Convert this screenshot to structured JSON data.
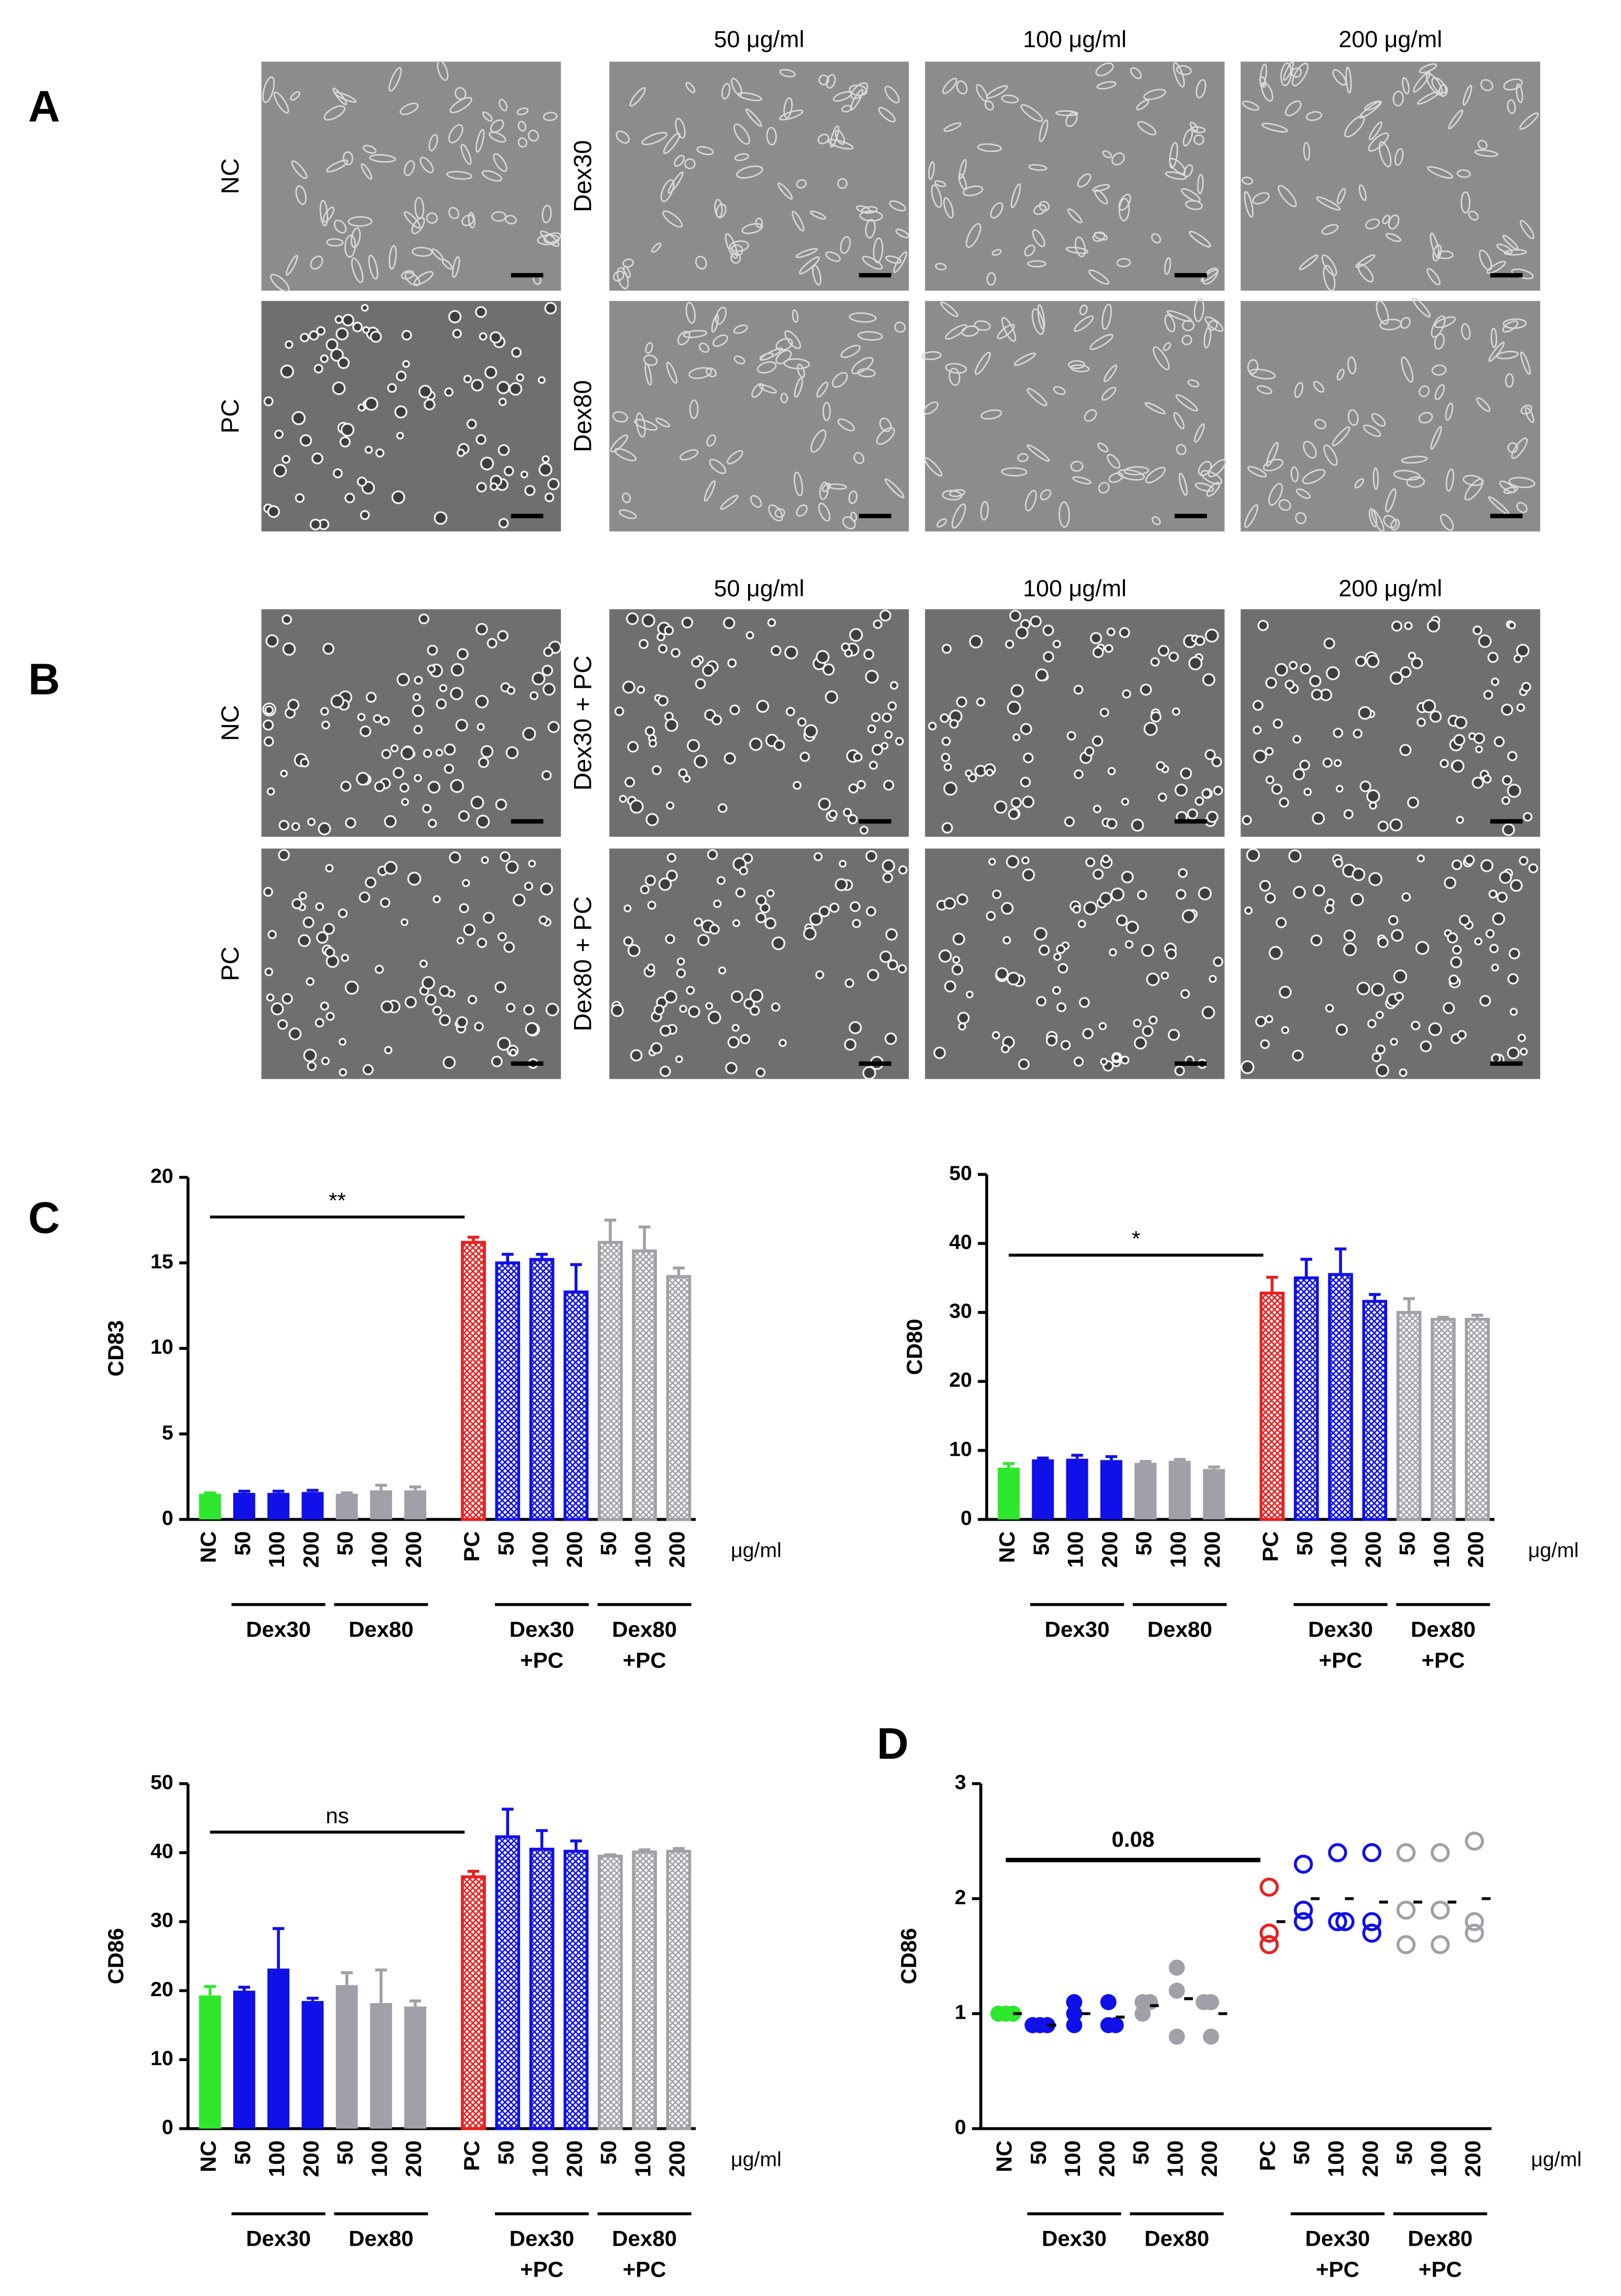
{
  "micrographs": [
    {
      "label": "A",
      "col_headers": [
        "50 μg/ml",
        "100 μg/ml",
        "200 μg/ml"
      ],
      "control_rows": [
        "NC",
        "PC"
      ],
      "treatment_rows": [
        "Dex30",
        "Dex80"
      ]
    },
    {
      "label": "B",
      "col_headers": [
        "50 μg/ml",
        "100 μg/ml",
        "200 μg/ml"
      ],
      "control_rows": [
        "NC",
        "PC"
      ],
      "treatment_rows": [
        "Dex30 + PC",
        "Dex80 + PC"
      ]
    }
  ],
  "chart_data": [
    {
      "type": "bar",
      "panel_label": "C",
      "y_label": "CD83",
      "unit_label": "μg/ml",
      "annotation": "**",
      "categories": [
        "NC",
        "50",
        "100",
        "200",
        "50",
        "100",
        "200",
        "PC",
        "50",
        "100",
        "200",
        "50",
        "100",
        "200"
      ],
      "groups": [
        [
          "Dex30"
        ],
        [
          "Dex80"
        ],
        [
          "Dex30",
          "+PC"
        ],
        [
          "Dex80",
          "+PC"
        ]
      ],
      "values": [
        1.5,
        1.55,
        1.55,
        1.6,
        1.5,
        1.7,
        1.7,
        16.2,
        15.0,
        15.2,
        13.3,
        16.2,
        15.7,
        14.2
      ],
      "errors": [
        0.05,
        0.1,
        0.1,
        0.1,
        0.05,
        0.3,
        0.2,
        0.3,
        0.5,
        0.3,
        1.6,
        1.3,
        1.4,
        0.5
      ],
      "colors": [
        "#2ee82e",
        "#1010e8",
        "#1010e8",
        "#1010e8",
        "#a0a0a8",
        "#a0a0a8",
        "#a0a0a8",
        "#e82020",
        "#1010e8",
        "#1010e8",
        "#1010e8",
        "#a0a0a8",
        "#a0a0a8",
        "#a0a0a8"
      ],
      "hatched": [
        false,
        false,
        false,
        false,
        false,
        false,
        false,
        true,
        true,
        true,
        true,
        true,
        true,
        true
      ],
      "ylim": [
        0,
        20
      ],
      "yticks": [
        0,
        5,
        10,
        15,
        20
      ]
    },
    {
      "type": "bar",
      "y_label": "CD80",
      "unit_label": "μg/ml",
      "annotation": "*",
      "categories": [
        "NC",
        "50",
        "100",
        "200",
        "50",
        "100",
        "200",
        "PC",
        "50",
        "100",
        "200",
        "50",
        "100",
        "200"
      ],
      "groups": [
        [
          "Dex30"
        ],
        [
          "Dex80"
        ],
        [
          "Dex30",
          "+PC"
        ],
        [
          "Dex80",
          "+PC"
        ]
      ],
      "values": [
        7.5,
        8.7,
        8.8,
        8.6,
        8.2,
        8.5,
        7.3,
        32.8,
        35.0,
        35.5,
        31.6,
        30.0,
        29.0,
        29.0
      ],
      "errors": [
        0.6,
        0.2,
        0.5,
        0.5,
        0.2,
        0.2,
        0.3,
        2.3,
        2.7,
        3.7,
        1.0,
        2.0,
        0.3,
        0.6
      ],
      "colors": [
        "#2ee82e",
        "#1010e8",
        "#1010e8",
        "#1010e8",
        "#a0a0a8",
        "#a0a0a8",
        "#a0a0a8",
        "#e82020",
        "#1010e8",
        "#1010e8",
        "#1010e8",
        "#a0a0a8",
        "#a0a0a8",
        "#a0a0a8"
      ],
      "hatched": [
        false,
        false,
        false,
        false,
        false,
        false,
        false,
        true,
        true,
        true,
        true,
        true,
        true,
        true
      ],
      "ylim": [
        0,
        50
      ],
      "yticks": [
        0,
        10,
        20,
        30,
        40,
        50
      ]
    },
    {
      "type": "bar",
      "y_label": "CD86",
      "unit_label": "μg/ml",
      "annotation": "ns",
      "categories": [
        "NC",
        "50",
        "100",
        "200",
        "50",
        "100",
        "200",
        "PC",
        "50",
        "100",
        "200",
        "50",
        "100",
        "200"
      ],
      "groups": [
        [
          "Dex30"
        ],
        [
          "Dex80"
        ],
        [
          "Dex30",
          "+PC"
        ],
        [
          "Dex80",
          "+PC"
        ]
      ],
      "values": [
        19.3,
        20.0,
        23.2,
        18.5,
        20.8,
        18.2,
        17.7,
        36.5,
        42.3,
        40.5,
        40.2,
        39.5,
        40.1,
        40.2
      ],
      "errors": [
        1.3,
        0.5,
        5.8,
        0.4,
        1.8,
        4.8,
        0.8,
        0.8,
        4.0,
        2.7,
        1.5,
        0.2,
        0.3,
        0.4
      ],
      "colors": [
        "#2ee82e",
        "#1010e8",
        "#1010e8",
        "#1010e8",
        "#a0a0a8",
        "#a0a0a8",
        "#a0a0a8",
        "#e82020",
        "#1010e8",
        "#1010e8",
        "#1010e8",
        "#a0a0a8",
        "#a0a0a8",
        "#a0a0a8"
      ],
      "hatched": [
        false,
        false,
        false,
        false,
        false,
        false,
        false,
        true,
        true,
        true,
        true,
        true,
        true,
        true
      ],
      "ylim": [
        0,
        50
      ],
      "yticks": [
        0,
        10,
        20,
        30,
        40,
        50
      ]
    },
    {
      "type": "dot",
      "panel_label": "D",
      "y_label": "CD86",
      "unit_label": "μg/ml",
      "annotation": "0.08",
      "categories": [
        "NC",
        "50",
        "100",
        "200",
        "50",
        "100",
        "200",
        "PC",
        "50",
        "100",
        "200",
        "50",
        "100",
        "200"
      ],
      "groups": [
        [
          "Dex30"
        ],
        [
          "Dex80"
        ],
        [
          "Dex30",
          "+PC"
        ],
        [
          "Dex80",
          "+PC"
        ]
      ],
      "values": [
        [
          1.0,
          1.0,
          1.0
        ],
        [
          0.9,
          0.9,
          0.9
        ],
        [
          1.1,
          1.0,
          0.9
        ],
        [
          1.1,
          0.9,
          0.9
        ],
        [
          1.1,
          1.0,
          1.1
        ],
        [
          1.4,
          1.2,
          0.8
        ],
        [
          1.1,
          1.1,
          0.8
        ],
        [
          2.1,
          1.7,
          1.6
        ],
        [
          2.3,
          1.9,
          1.8
        ],
        [
          2.4,
          1.8,
          1.8
        ],
        [
          2.4,
          1.8,
          1.7
        ],
        [
          2.4,
          1.9,
          1.6
        ],
        [
          2.4,
          1.9,
          1.6
        ],
        [
          2.5,
          1.8,
          1.7
        ]
      ],
      "means": [
        1.0,
        0.9,
        1.0,
        0.97,
        1.07,
        1.13,
        1.0,
        1.8,
        2.0,
        2.0,
        1.97,
        1.97,
        1.97,
        2.0
      ],
      "colors": [
        "#2ee82e",
        "#1010e8",
        "#1010e8",
        "#1010e8",
        "#a0a0a8",
        "#a0a0a8",
        "#a0a0a8",
        "#e82020",
        "#1010e8",
        "#1010e8",
        "#1010e8",
        "#a0a0a8",
        "#a0a0a8",
        "#a0a0a8"
      ],
      "filled": [
        true,
        true,
        true,
        true,
        true,
        true,
        true,
        false,
        false,
        false,
        false,
        false,
        false,
        false
      ],
      "ylim": [
        0,
        3
      ],
      "yticks": [
        0,
        1,
        2,
        3
      ]
    }
  ]
}
